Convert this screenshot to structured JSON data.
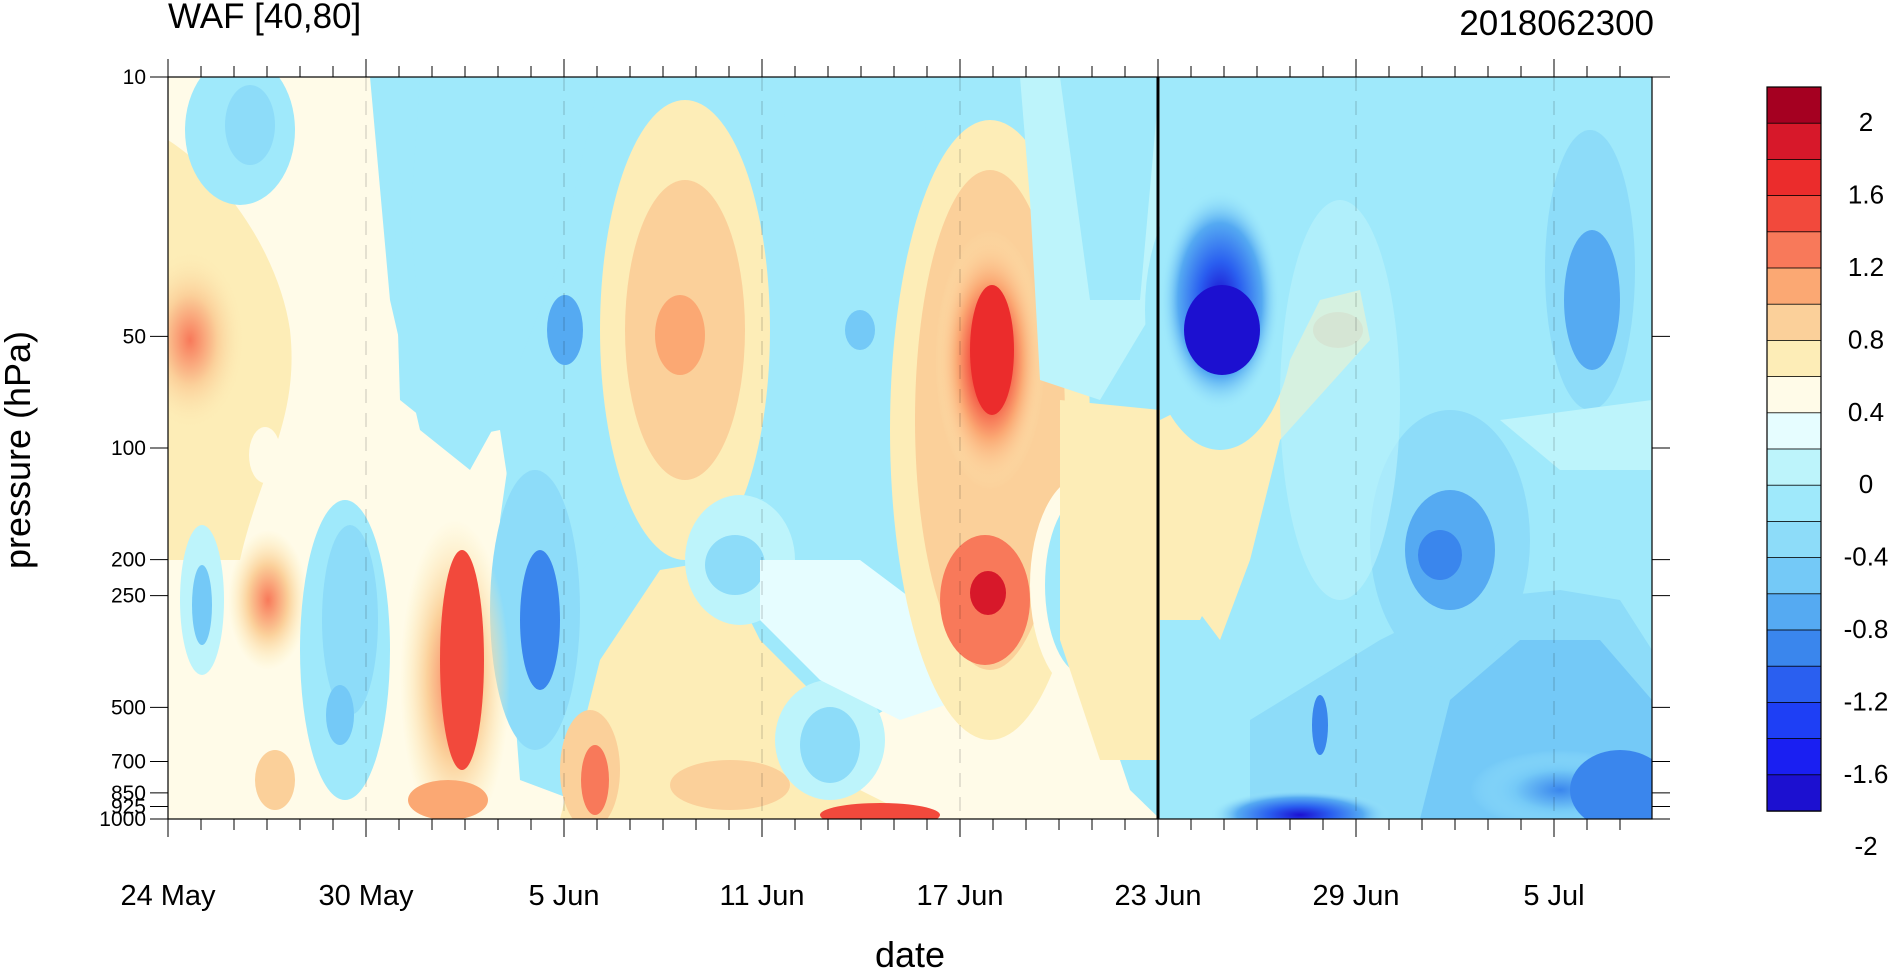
{
  "chart_data": {
    "type": "heatmap",
    "subtype": "filled-contour",
    "title": "WAF [40,80]",
    "right_title": "2018062300",
    "xlabel": "date",
    "ylabel": "pressure (hPa)",
    "y_scale": "log",
    "y_inverted": true,
    "x_ticks": [
      "24 May",
      "30 May",
      "5 Jun",
      "11 Jun",
      "17 Jun",
      "23 Jun",
      "29 Jun",
      "5 Jul"
    ],
    "y_ticks": [
      "10",
      "50",
      "100",
      "200",
      "250",
      "500",
      "700",
      "850",
      "925",
      "1000"
    ],
    "colorbar": {
      "labels": [
        "2",
        "1.6",
        "1.2",
        "0.8",
        "0.4",
        "0",
        "-0.4",
        "-0.8",
        "-1.2",
        "-1.6",
        "-2"
      ],
      "colors": [
        "#a50021",
        "#d7182a",
        "#eb2c2c",
        "#f2493c",
        "#f8795a",
        "#fba873",
        "#fbd09a",
        "#fdedb7",
        "#fffbe8",
        "#e6fdff",
        "#bdf4fb",
        "#9fe9fb",
        "#8ddcf9",
        "#74c9f7",
        "#55aaf2",
        "#3a86ed",
        "#2a5ff0",
        "#1e3ff5",
        "#1a1ff2",
        "#1c10d0"
      ]
    },
    "marked_date": "23 Jun"
  }
}
